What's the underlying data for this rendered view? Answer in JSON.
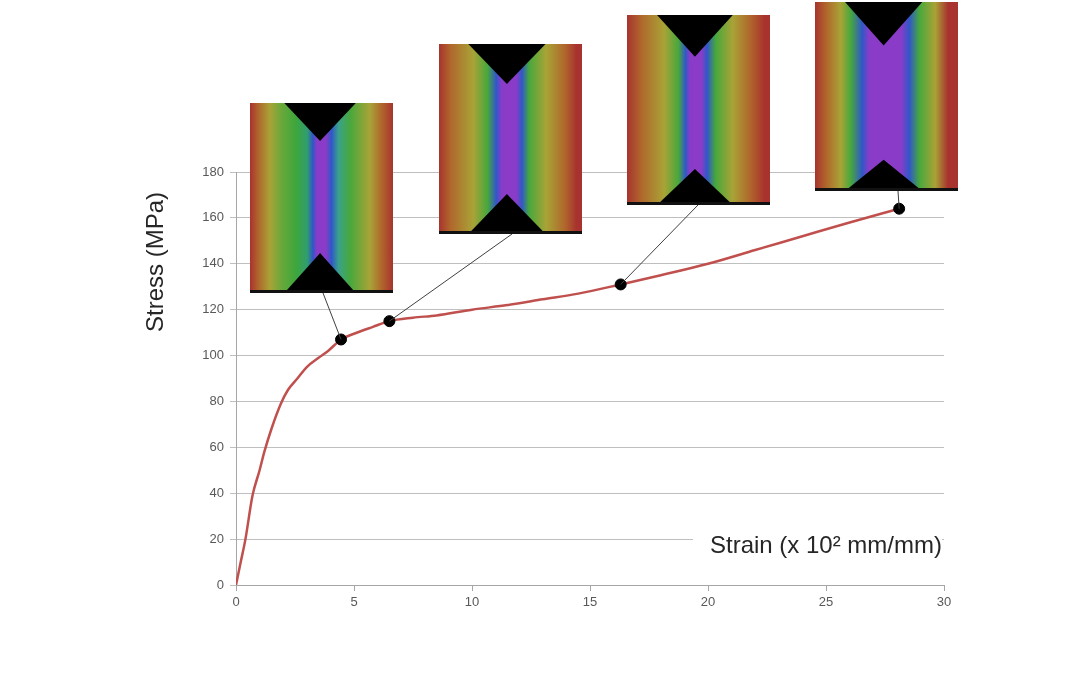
{
  "chart_data": {
    "type": "line",
    "xlabel": "Strain (x 10² mm/mm)",
    "ylabel": "Stress (MPa)",
    "xlim": [
      0,
      30
    ],
    "xticks": [
      0,
      5,
      10,
      15,
      20,
      25,
      30
    ],
    "ylim": [
      0,
      180
    ],
    "yticks": [
      0,
      20,
      40,
      60,
      80,
      100,
      120,
      140,
      160,
      180
    ],
    "grid": "y",
    "series": [
      {
        "color": "#c0504d",
        "marker": "none",
        "x": [
          0,
          0.2,
          0.4,
          0.7,
          1.0,
          1.2,
          1.5,
          1.9,
          2.2,
          2.6,
          3.0,
          3.5,
          3.9,
          4.45,
          5.0,
          5.8,
          6.5,
          7.5,
          8.5,
          10,
          11.5,
          13,
          14.5,
          16.3,
          18,
          20,
          22,
          24,
          26,
          28.1
        ],
        "values": [
          0,
          10,
          20,
          39,
          50,
          58,
          68,
          79,
          85,
          90,
          95,
          99,
          102,
          107,
          109.5,
          112.5,
          115,
          116.5,
          117.5,
          120,
          122,
          124.5,
          127,
          131,
          135,
          140,
          146,
          152,
          158,
          164
        ]
      },
      {
        "type": "scatter",
        "color": "#000000",
        "marker": "circle",
        "x": [
          4.45,
          6.5,
          16.3,
          28.1
        ],
        "values": [
          107,
          115,
          131,
          164
        ]
      }
    ]
  }
}
